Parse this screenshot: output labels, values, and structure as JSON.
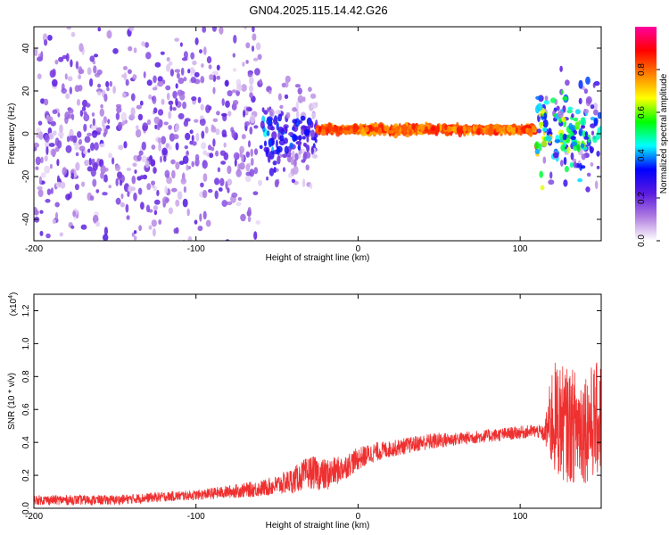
{
  "title": "GN04.2025.115.14.42.G26",
  "chart_data": [
    {
      "type": "heatmap",
      "xlabel": "Height of straight line (km)",
      "ylabel": "Frequency (Hz)",
      "xlim": [
        -200,
        150
      ],
      "ylim": [
        -50,
        50
      ],
      "xticks": [
        -200,
        -100,
        0,
        100
      ],
      "xtick_labels": [
        "-200",
        "-100",
        "0",
        "100"
      ],
      "yticks": [
        -40,
        -20,
        0,
        20,
        40
      ],
      "ytick_labels": [
        "-40",
        "-20",
        "0",
        "20",
        "40"
      ],
      "colorbar": {
        "label": "Normalized spectral amplitude",
        "range": [
          0,
          1
        ],
        "ticks": [
          0.0,
          0.2,
          0.4,
          0.6,
          0.8
        ],
        "tick_labels": [
          "0.0",
          "0.2",
          "0.4",
          "0.6",
          "0.8"
        ],
        "colors": [
          "#ffffff",
          "#b07de0",
          "#5a1adf",
          "#0000ff",
          "#00ffff",
          "#00ff00",
          "#ffff00",
          "#ff8000",
          "#ff0000",
          "#ff00a0"
        ]
      },
      "grid": false,
      "description_bands": [
        {
          "x": [
            -200,
            -60
          ],
          "freq_range": [
            -50,
            50
          ],
          "amplitude": 0.15
        },
        {
          "x": [
            -60,
            -25
          ],
          "freq_range": [
            -20,
            20
          ],
          "amplitude": 0.2
        },
        {
          "x": [
            -25,
            110
          ],
          "freq_center": 2,
          "amplitude": 0.85
        },
        {
          "x": [
            110,
            150
          ],
          "freq_range": [
            -20,
            20
          ],
          "amplitude": 0.45
        }
      ]
    },
    {
      "type": "line",
      "xlabel": "Height of straight line (km)",
      "ylabel": "SNR (10 * v/v)",
      "y_multiplier_label": "(x10",
      "y_multiplier_exp": "4",
      "y_multiplier_close": ")",
      "xlim": [
        -200,
        150
      ],
      "ylim": [
        0,
        1.3
      ],
      "xticks": [
        -200,
        -100,
        0,
        100
      ],
      "xtick_labels": [
        "-200",
        "-100",
        "0",
        "100"
      ],
      "yticks": [
        0.0,
        0.2,
        0.4,
        0.6,
        0.8,
        1.0,
        1.2
      ],
      "ytick_labels": [
        "0.0",
        "0.2",
        "0.4",
        "0.6",
        "0.8",
        "1.0",
        "1.2"
      ],
      "grid": false,
      "series": [
        {
          "color": "#ef3030",
          "x": [
            -200,
            -150,
            -120,
            -100,
            -80,
            -60,
            -50,
            -40,
            -30,
            -20,
            -10,
            0,
            10,
            20,
            30,
            40,
            50,
            60,
            70,
            80,
            90,
            100,
            110,
            115,
            120,
            130,
            140,
            150
          ],
          "y": [
            0.05,
            0.05,
            0.07,
            0.08,
            0.1,
            0.12,
            0.14,
            0.17,
            0.22,
            0.2,
            0.24,
            0.3,
            0.34,
            0.36,
            0.38,
            0.4,
            0.41,
            0.42,
            0.43,
            0.44,
            0.45,
            0.46,
            0.47,
            0.45,
            0.55,
            0.5,
            0.5,
            0.55
          ],
          "spread": [
            0.03,
            0.03,
            0.03,
            0.03,
            0.04,
            0.05,
            0.06,
            0.08,
            0.1,
            0.1,
            0.08,
            0.07,
            0.06,
            0.05,
            0.05,
            0.05,
            0.05,
            0.04,
            0.04,
            0.04,
            0.04,
            0.04,
            0.04,
            0.05,
            0.35,
            0.35,
            0.35,
            0.35
          ]
        }
      ]
    }
  ]
}
